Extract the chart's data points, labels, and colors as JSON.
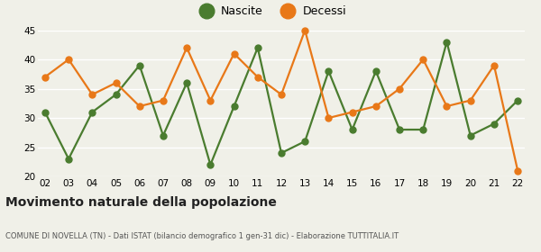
{
  "years": [
    "02",
    "03",
    "04",
    "05",
    "06",
    "07",
    "08",
    "09",
    "10",
    "11",
    "12",
    "13",
    "14",
    "15",
    "16",
    "17",
    "18",
    "19",
    "20",
    "21",
    "22"
  ],
  "nascite": [
    31,
    23,
    31,
    34,
    39,
    27,
    36,
    22,
    32,
    42,
    24,
    26,
    38,
    28,
    38,
    28,
    28,
    43,
    27,
    29,
    33
  ],
  "decessi": [
    37,
    40,
    34,
    36,
    32,
    33,
    42,
    33,
    41,
    37,
    34,
    45,
    30,
    31,
    32,
    35,
    40,
    32,
    33,
    39,
    21
  ],
  "nascite_color": "#4a7c2f",
  "decessi_color": "#e87818",
  "title": "Movimento naturale della popolazione",
  "subtitle": "COMUNE DI NOVELLA (TN) - Dati ISTAT (bilancio demografico 1 gen-31 dic) - Elaborazione TUTTITALIA.IT",
  "legend_nascite": "Nascite",
  "legend_decessi": "Decessi",
  "ylim": [
    20,
    45
  ],
  "yticks": [
    20,
    25,
    30,
    35,
    40,
    45
  ],
  "plot_bg_color": "#f0f0e8",
  "fig_bg_color": "#f0f0e8",
  "grid_color": "#ffffff",
  "marker_size": 5,
  "line_width": 1.6,
  "legend_marker_size": 12
}
